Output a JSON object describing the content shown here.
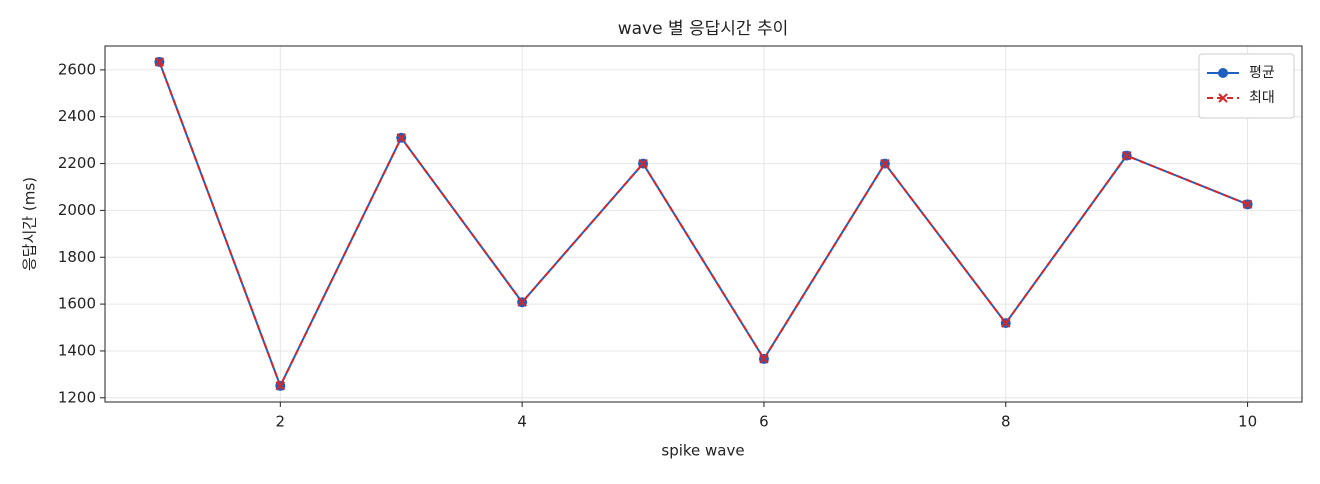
{
  "chart_data": {
    "type": "line",
    "title": "wave 별 응답시간 추이",
    "x_label": "spike wave",
    "y_label": "응답시간 (ms)",
    "x": [
      1,
      2,
      3,
      4,
      5,
      6,
      7,
      8,
      9,
      10
    ],
    "series": [
      {
        "name": "평균",
        "color": "#1f5fbf",
        "marker": "circle",
        "dash": false,
        "values": [
          2634,
          1251,
          2310,
          1608,
          2200,
          1366,
          2200,
          1519,
          2234,
          2026
        ]
      },
      {
        "name": "최대",
        "color": "#d62728",
        "marker": "x",
        "dash": true,
        "values": [
          2634,
          1251,
          2310,
          1608,
          2200,
          1366,
          2200,
          1519,
          2234,
          2026
        ]
      }
    ],
    "xlim": [
      0.55,
      10.45
    ],
    "ylim": [
      1182,
      2702
    ],
    "xticks": [
      2,
      4,
      6,
      8,
      10
    ],
    "yticks": [
      1200,
      1400,
      1600,
      1800,
      2000,
      2200,
      2400,
      2600
    ],
    "grid": true,
    "legend": "upper right"
  }
}
